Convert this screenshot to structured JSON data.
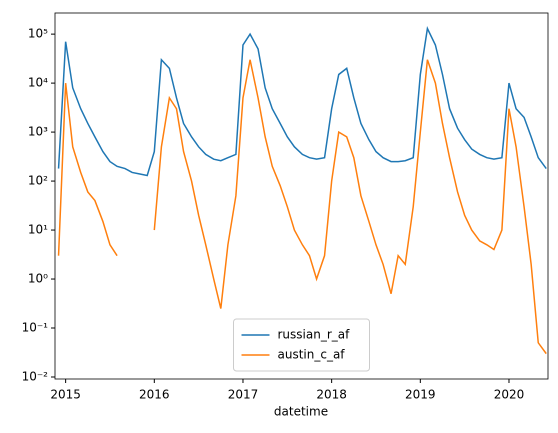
{
  "chart_data": {
    "type": "line",
    "x_label": "datetime",
    "x": [
      2014.92,
      2015.0,
      2015.08,
      2015.17,
      2015.25,
      2015.33,
      2015.42,
      2015.5,
      2015.58,
      2015.67,
      2015.75,
      2015.83,
      2015.92,
      2016.0,
      2016.08,
      2016.17,
      2016.25,
      2016.33,
      2016.42,
      2016.5,
      2016.58,
      2016.67,
      2016.75,
      2016.83,
      2016.92,
      2017.0,
      2017.08,
      2017.17,
      2017.25,
      2017.33,
      2017.42,
      2017.5,
      2017.58,
      2017.67,
      2017.75,
      2017.83,
      2017.92,
      2018.0,
      2018.08,
      2018.17,
      2018.25,
      2018.33,
      2018.42,
      2018.5,
      2018.58,
      2018.67,
      2018.75,
      2018.83,
      2018.92,
      2019.0,
      2019.08,
      2019.17,
      2019.25,
      2019.33,
      2019.42,
      2019.5,
      2019.58,
      2019.67,
      2019.75,
      2019.83,
      2019.92,
      2020.0,
      2020.08,
      2020.17,
      2020.25,
      2020.33,
      2020.42
    ],
    "series": [
      {
        "name": "russian_r_af",
        "color": "#1f77b4",
        "values": [
          180,
          70000,
          8000,
          3000,
          1500,
          800,
          400,
          250,
          200,
          180,
          150,
          140,
          130,
          400,
          30000,
          20000,
          5000,
          1500,
          800,
          500,
          350,
          280,
          260,
          300,
          350,
          60000,
          100000,
          50000,
          8000,
          3000,
          1500,
          800,
          500,
          350,
          300,
          280,
          300,
          3000,
          15000,
          20000,
          5000,
          1500,
          700,
          400,
          300,
          250,
          250,
          260,
          300,
          15000,
          130000,
          60000,
          15000,
          3000,
          1200,
          700,
          450,
          350,
          300,
          280,
          300,
          10000,
          3000,
          2000,
          800,
          300,
          180
        ]
      },
      {
        "name": "austin_c_af",
        "color": "#ff7f0e",
        "values": [
          3,
          10000,
          500,
          150,
          60,
          40,
          15,
          5,
          3,
          null,
          null,
          null,
          null,
          10,
          500,
          5000,
          3000,
          400,
          100,
          20,
          5,
          1,
          0.25,
          5,
          50,
          5000,
          30000,
          5000,
          800,
          200,
          80,
          30,
          10,
          5,
          3,
          1,
          3,
          100,
          1000,
          800,
          300,
          50,
          15,
          5,
          2,
          0.5,
          3,
          2,
          30,
          1000,
          30000,
          10000,
          1500,
          300,
          60,
          20,
          10,
          6,
          5,
          4,
          10,
          3000,
          500,
          30,
          2,
          0.05,
          0.03
        ]
      }
    ],
    "xlim": [
      2014.88,
      2020.44
    ],
    "xticks": [
      2015,
      2016,
      2017,
      2018,
      2019,
      2020
    ],
    "ylim": [
      0.0091,
      270000
    ],
    "yticks": [
      {
        "value": 0.01,
        "label": "10⁻²"
      },
      {
        "value": 0.1,
        "label": "10⁻¹"
      },
      {
        "value": 1,
        "label": "10⁰"
      },
      {
        "value": 10,
        "label": "10¹"
      },
      {
        "value": 100,
        "label": "10²"
      },
      {
        "value": 1000,
        "label": "10³"
      },
      {
        "value": 10000,
        "label": "10⁴"
      },
      {
        "value": 100000,
        "label": "10⁵"
      }
    ],
    "log_y": true,
    "legend": "lower center"
  }
}
